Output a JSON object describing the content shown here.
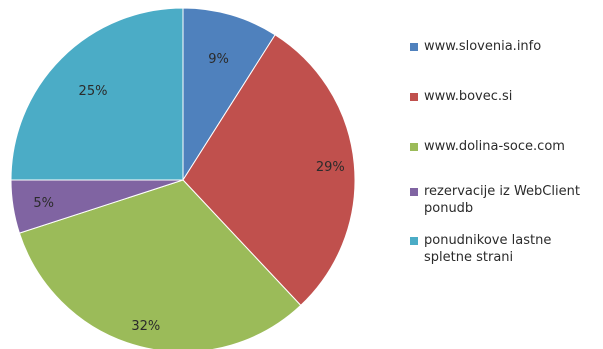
{
  "chart_data": {
    "type": "pie",
    "title": "",
    "start_angle_deg": 0,
    "direction": "clockwise",
    "legend_position": "right",
    "slices": [
      {
        "label": "www.slovenia.info",
        "value": 9,
        "display": "9%",
        "color": "#4f81bd"
      },
      {
        "label": "www.bovec.si",
        "value": 29,
        "display": "29%",
        "color": "#c0504d"
      },
      {
        "label": "www.dolina-soce.com",
        "value": 32,
        "display": "32%",
        "color": "#9bbb59"
      },
      {
        "label": "rezervacije iz WebClient ponudb",
        "value": 5,
        "display": "5%",
        "color": "#8064a2"
      },
      {
        "label": "ponudnikove lastne spletne strani",
        "value": 25,
        "display": "25%",
        "color": "#4bacc6"
      }
    ]
  }
}
